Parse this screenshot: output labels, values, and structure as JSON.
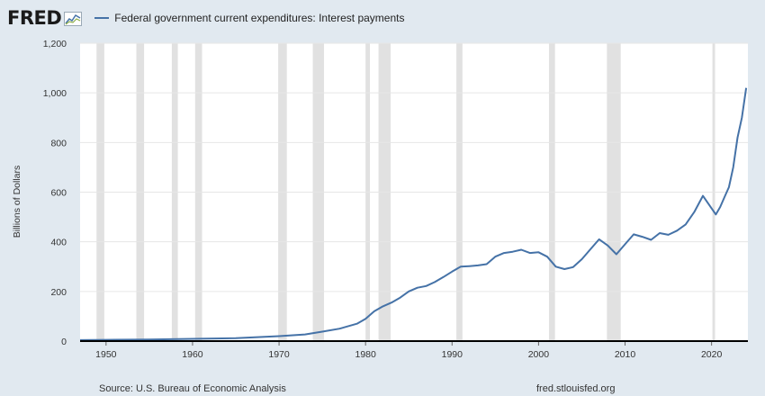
{
  "header": {
    "logo_text": "FRED",
    "logo_icon": "trend-chart-icon"
  },
  "legend": {
    "label": "Federal government current expenditures: Interest payments",
    "color": "#4572a7"
  },
  "footer": {
    "source": "Source: U.S. Bureau of Economic Analysis",
    "url": "fred.stlouisfed.org"
  },
  "colors": {
    "background": "#e1e9f0",
    "plot_background": "#ffffff",
    "recession_band": "#e1e1e1",
    "line": "#4572a7",
    "axis": "#000000"
  },
  "chart_data": {
    "type": "line",
    "title": "",
    "xlabel": "",
    "ylabel": "Billions of Dollars",
    "xlim": [
      1947,
      2024.2
    ],
    "ylim": [
      0,
      1200
    ],
    "x_ticks": [
      1950,
      1960,
      1970,
      1980,
      1990,
      2000,
      2010,
      2020
    ],
    "y_ticks": [
      0,
      200,
      400,
      600,
      800,
      1000,
      1200
    ],
    "y_tick_labels": [
      "0",
      "200",
      "400",
      "600",
      "800",
      "1,000",
      "1,200"
    ],
    "grid": "horizontal",
    "legend_position": "top",
    "recessions": [
      [
        1948.9,
        1949.8
      ],
      [
        1953.5,
        1954.4
      ],
      [
        1957.6,
        1958.3
      ],
      [
        1960.3,
        1961.1
      ],
      [
        1969.9,
        1970.9
      ],
      [
        1973.9,
        1975.2
      ],
      [
        1980.0,
        1980.5
      ],
      [
        1981.5,
        1982.9
      ],
      [
        1990.5,
        1991.2
      ],
      [
        2001.2,
        2001.9
      ],
      [
        2007.9,
        2009.5
      ],
      [
        2020.1,
        2020.4
      ]
    ],
    "series": [
      {
        "name": "Federal government current expenditures: Interest payments",
        "x": [
          1947,
          1950,
          1955,
          1960,
          1965,
          1970,
          1973,
          1975,
          1977,
          1979,
          1980,
          1981,
          1982,
          1983,
          1984,
          1985,
          1986,
          1987,
          1988,
          1989,
          1990,
          1991,
          1992,
          1993,
          1994,
          1995,
          1996,
          1997,
          1998,
          1999,
          2000,
          2001,
          2002,
          2003,
          2004,
          2005,
          2006,
          2007,
          2008,
          2009,
          2010,
          2011,
          2012,
          2013,
          2014,
          2015,
          2016,
          2017,
          2018,
          2019,
          2020,
          2020.5,
          2021,
          2021.5,
          2022,
          2022.5,
          2023,
          2023.5,
          2024
        ],
        "values": [
          4,
          5,
          6,
          9,
          12,
          20,
          27,
          38,
          50,
          70,
          90,
          120,
          140,
          155,
          175,
          200,
          215,
          222,
          238,
          258,
          280,
          300,
          302,
          305,
          310,
          340,
          355,
          360,
          368,
          355,
          358,
          340,
          300,
          290,
          298,
          330,
          370,
          410,
          385,
          350,
          390,
          430,
          420,
          408,
          435,
          428,
          445,
          470,
          520,
          585,
          535,
          510,
          540,
          580,
          620,
          700,
          820,
          900,
          1020
        ]
      }
    ]
  }
}
